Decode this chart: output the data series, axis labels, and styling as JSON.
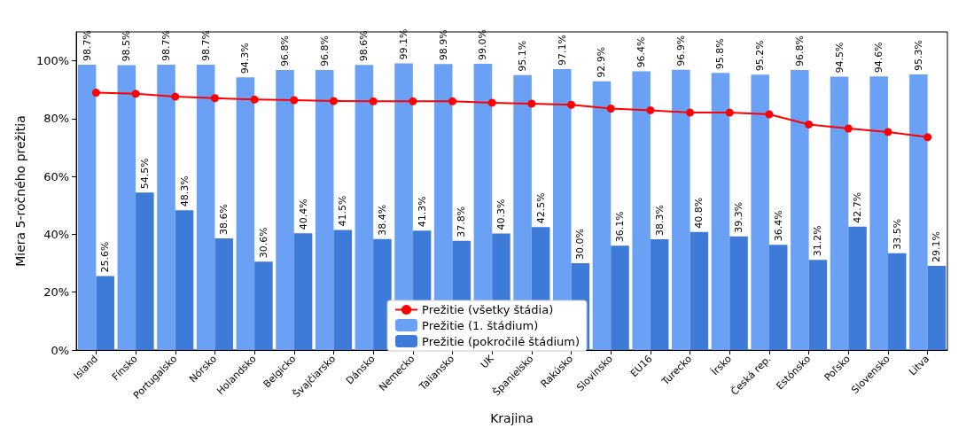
{
  "chart_data": {
    "type": "bar",
    "xlabel": "Krajina",
    "ylabel": "Miera 5-ročného prežitia",
    "categories": [
      "Island",
      "Fínsko",
      "Portugalsko",
      "Nórsko",
      "Holandsko",
      "Belgicko",
      "Švajčiarsko",
      "Dánsko",
      "Nemecko",
      "Taliansko",
      "UK",
      "Španielsko",
      "Rakúsko",
      "Slovinsko",
      "EU16",
      "Turecko",
      "Írsko",
      "Česká rep.",
      "Estónsko",
      "Poľsko",
      "Slovensko",
      "Litva"
    ],
    "series": [
      {
        "name": "Prežitie (všetky štádia)",
        "type": "line",
        "color": "#ff0000",
        "marker": "circle",
        "values": [
          89.0,
          88.6,
          87.6,
          87.1,
          86.6,
          86.4,
          86.1,
          86.0,
          86.0,
          86.0,
          85.5,
          85.2,
          84.8,
          83.5,
          82.9,
          82.1,
          82.1,
          81.5,
          78.0,
          76.6,
          75.4,
          73.6
        ]
      },
      {
        "name": "Prežitie (1. štádium)",
        "color": "#6aa1f5",
        "values": [
          98.7,
          98.5,
          98.7,
          98.7,
          94.3,
          96.8,
          96.8,
          98.6,
          99.1,
          98.9,
          99.0,
          95.1,
          97.1,
          92.9,
          96.4,
          96.9,
          95.8,
          95.2,
          96.8,
          94.5,
          94.6,
          95.3
        ],
        "value_labels": [
          "98.7%",
          "98.5%",
          "98.7%",
          "98.7%",
          "94.3%",
          "96.8%",
          "96.8%",
          "98.6%",
          "99.1%",
          "98.9%",
          "99.0%",
          "95.1%",
          "97.1%",
          "92.9%",
          "96.4%",
          "96.9%",
          "95.8%",
          "95.2%",
          "96.8%",
          "94.5%",
          "94.6%",
          "95.3%"
        ]
      },
      {
        "name": "Prežitie (pokročilé štádium)",
        "color": "#3e7bd9",
        "values": [
          25.6,
          54.5,
          48.3,
          38.6,
          30.6,
          40.4,
          41.5,
          38.4,
          41.3,
          37.8,
          40.3,
          42.5,
          30.0,
          36.1,
          38.3,
          40.8,
          39.3,
          36.4,
          31.2,
          42.7,
          33.5,
          29.1
        ],
        "value_labels": [
          "25.6%",
          "54.5%",
          "48.3%",
          "38.6%",
          "30.6%",
          "40.4%",
          "41.5%",
          "38.4%",
          "41.3%",
          "37.8%",
          "40.3%",
          "42.5%",
          "30.0%",
          "36.1%",
          "38.3%",
          "40.8%",
          "39.3%",
          "36.4%",
          "31.2%",
          "42.7%",
          "33.5%",
          "29.1%"
        ]
      }
    ],
    "ylim": [
      0,
      110
    ],
    "yticks": [
      {
        "value": 0,
        "label": "0%"
      },
      {
        "value": 20,
        "label": "20%"
      },
      {
        "value": 40,
        "label": "40%"
      },
      {
        "value": 60,
        "label": "60%"
      },
      {
        "value": 80,
        "label": "80%"
      },
      {
        "value": 100,
        "label": "100%"
      }
    ],
    "legend": "bottom",
    "grid": false
  }
}
